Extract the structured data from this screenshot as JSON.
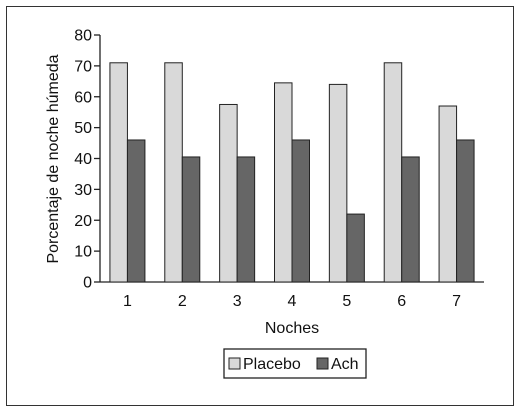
{
  "chart_data": {
    "type": "bar",
    "xlabel": "Noches",
    "ylabel": "Porcentaje de noche húmeda",
    "categories": [
      "1",
      "2",
      "3",
      "4",
      "5",
      "6",
      "7"
    ],
    "ylim": [
      0,
      80
    ],
    "yticks": [
      0,
      10,
      20,
      30,
      40,
      50,
      60,
      70,
      80
    ],
    "series": [
      {
        "name": "Placebo",
        "color": "#d9d9d9",
        "values": [
          71,
          71,
          57.5,
          64.5,
          64,
          71,
          57
        ]
      },
      {
        "name": "Ach",
        "color": "#666666",
        "values": [
          46,
          40.5,
          40.5,
          46,
          22,
          40.5,
          46
        ]
      }
    ],
    "legend_position": "bottom",
    "grid": false
  }
}
